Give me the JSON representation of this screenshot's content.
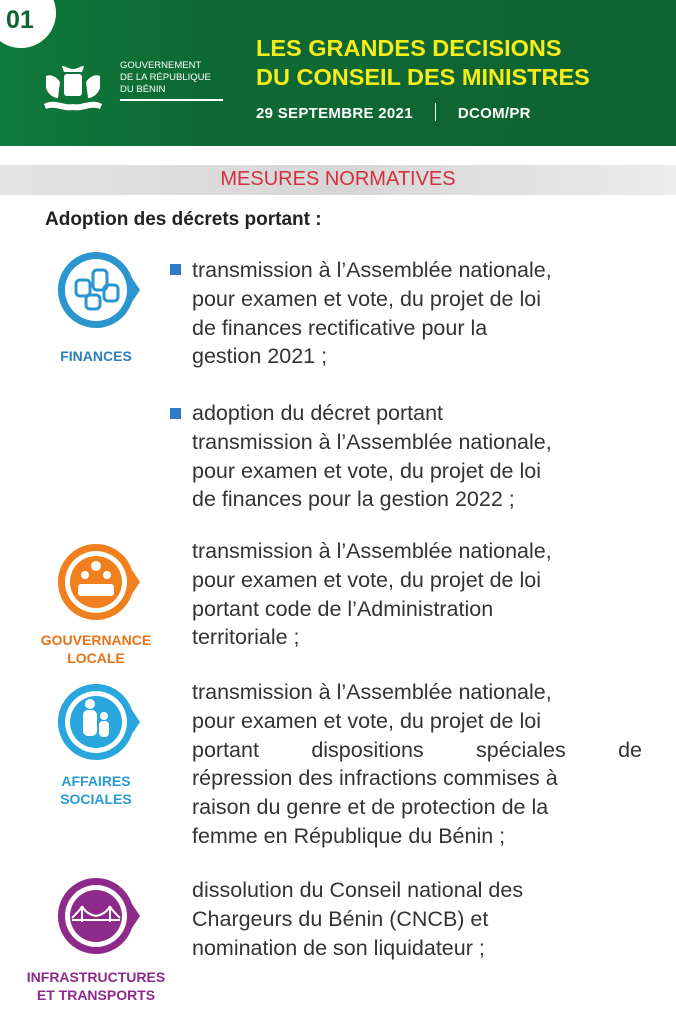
{
  "header": {
    "page_number": "01",
    "government": [
      "GOUVERNEMENT",
      "DE LA RÉPUBLIQUE",
      "DU BÉNIN"
    ],
    "title_lines": [
      "LES GRANDES DECISIONS",
      "DU CONSEIL DES MINISTRES"
    ],
    "date": "29 SEPTEMBRE 2021",
    "source": "DCOM/PR"
  },
  "section": {
    "title": "MESURES NORMATIVES",
    "intro": "Adoption des décrets portant :"
  },
  "items": [
    {
      "category": "FINANCES",
      "color": "#2a95cf",
      "bullets": [
        [
          "transmission à l’Assemblée nationale,",
          "pour examen et vote, du projet de loi",
          "de finances rectificative pour la",
          "gestion 2021 ;"
        ],
        [
          "adoption du décret portant",
          "transmission à l’Assemblée nationale,",
          "pour examen et vote, du projet de loi",
          "de finances pour la gestion 2022 ;"
        ]
      ]
    },
    {
      "category": [
        "GOUVERNANCE",
        "LOCALE"
      ],
      "color": "#f07f1d",
      "lines": [
        "transmission à l’Assemblée nationale,",
        "pour examen et vote, du projet de loi",
        "portant code de l’Administration",
        "territoriale ;"
      ]
    },
    {
      "category": [
        "AFFAIRES",
        "SOCIALES"
      ],
      "color": "#2aa6df",
      "lines": [
        "transmission à l’Assemblée nationale,",
        "pour examen et vote, du projet de loi",
        "portant dispositions spéciales de",
        "répression des infractions commises à",
        "raison du genre et de protection de la",
        "femme en République du Bénin ;"
      ]
    },
    {
      "category": [
        "INFRASTRUCTURES",
        "ET TRANSPORTS"
      ],
      "color": "#8e2a8a",
      "lines": [
        "dissolution du Conseil national des",
        "Chargeurs du Bénin (CNCB) et",
        "nomination de son liquidateur ;"
      ]
    }
  ]
}
